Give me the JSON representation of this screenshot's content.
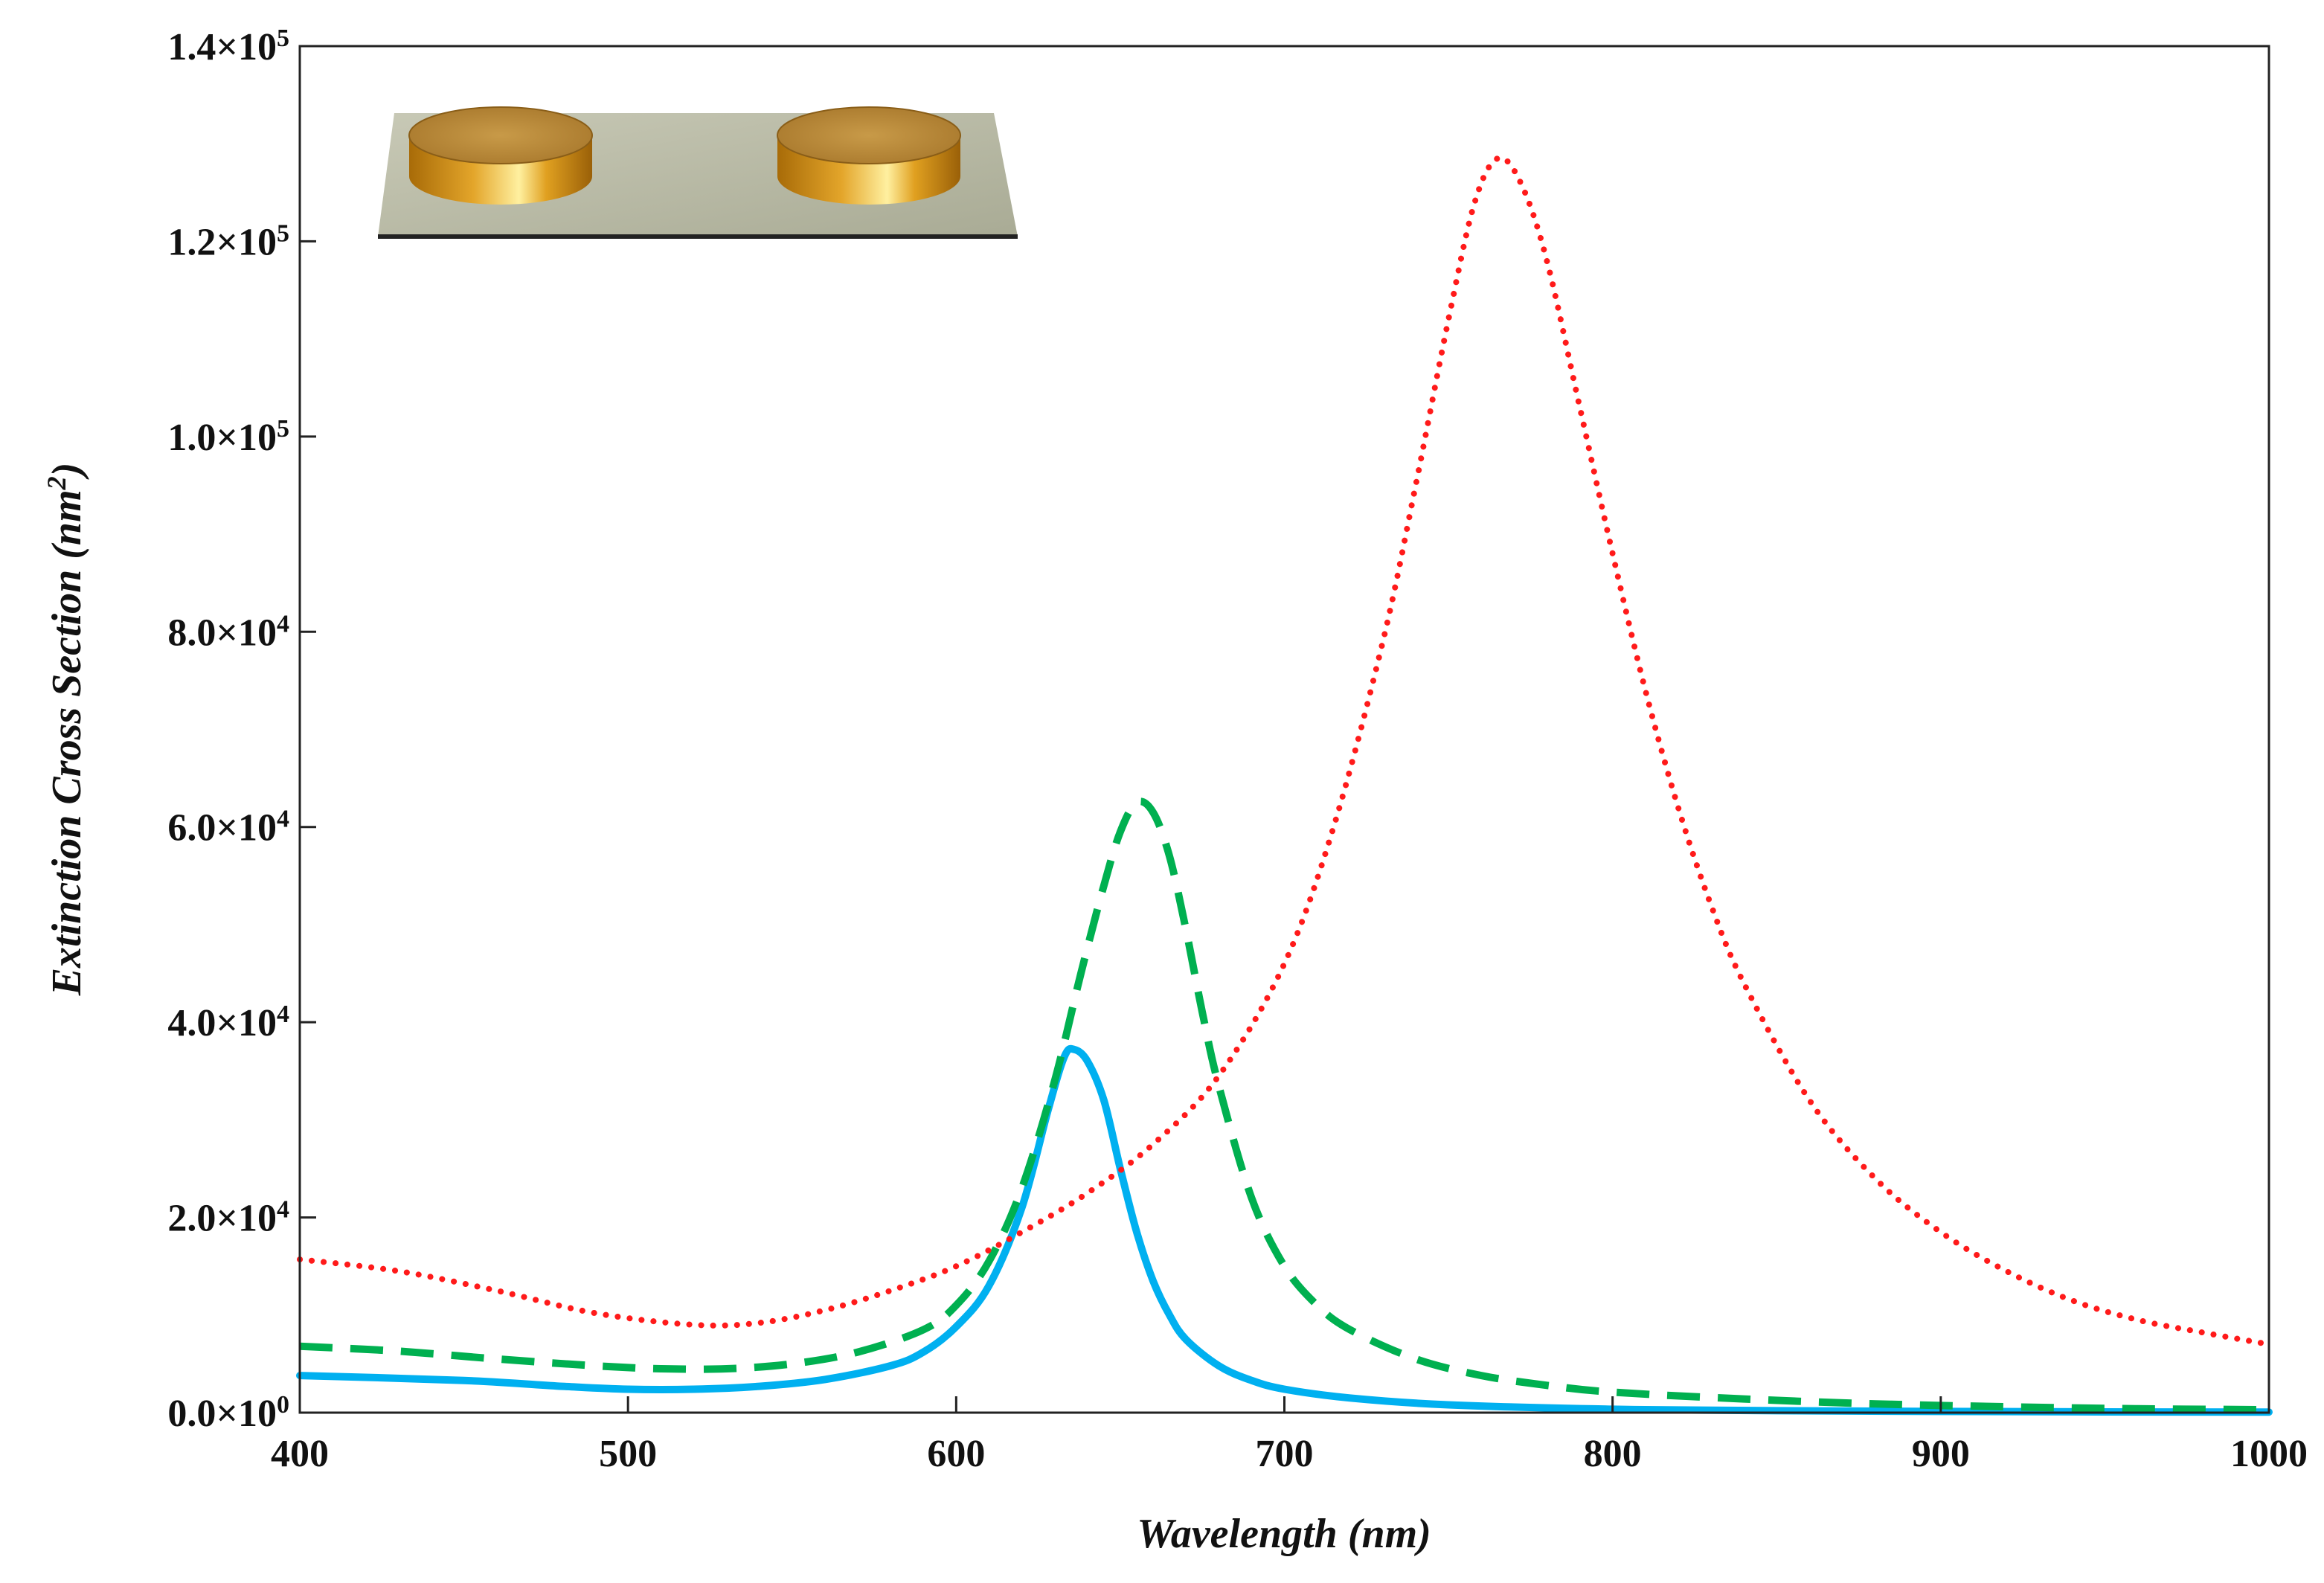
{
  "chart_data": {
    "type": "line",
    "title": "",
    "xlabel": "Wavelength (nm)",
    "ylabel": "Extinction Cross Section (nm²)",
    "ylabel_main": "Extinction Cross Section (nm",
    "ylabel_sup": "2",
    "ylabel_end": ")",
    "xlim": [
      400,
      1000
    ],
    "ylim": [
      0,
      140000
    ],
    "grid": false,
    "legend": "none",
    "x_ticks": [
      {
        "value": 400,
        "label": "400"
      },
      {
        "value": 500,
        "label": "500"
      },
      {
        "value": 600,
        "label": "600"
      },
      {
        "value": 700,
        "label": "700"
      },
      {
        "value": 800,
        "label": "800"
      },
      {
        "value": 900,
        "label": "900"
      },
      {
        "value": 1000,
        "label": "1000"
      }
    ],
    "y_ticks": [
      {
        "value": 0,
        "mantissa": "0.0×10",
        "exp": "0"
      },
      {
        "value": 20000,
        "mantissa": "2.0×10",
        "exp": "4"
      },
      {
        "value": 40000,
        "mantissa": "4.0×10",
        "exp": "4"
      },
      {
        "value": 60000,
        "mantissa": "6.0×10",
        "exp": "4"
      },
      {
        "value": 80000,
        "mantissa": "8.0×10",
        "exp": "4"
      },
      {
        "value": 100000,
        "mantissa": "1.0×10",
        "exp": "5"
      },
      {
        "value": 120000,
        "mantissa": "1.2×10",
        "exp": "5"
      },
      {
        "value": 140000,
        "mantissa": "1.4×10",
        "exp": "5"
      }
    ],
    "series": [
      {
        "name": "solid-blue",
        "style": "solid",
        "color": "#00b0f0",
        "points": [
          [
            400,
            3800
          ],
          [
            450,
            3300
          ],
          [
            480,
            2700
          ],
          [
            500,
            2400
          ],
          [
            520,
            2400
          ],
          [
            540,
            2700
          ],
          [
            560,
            3400
          ],
          [
            580,
            4800
          ],
          [
            590,
            6200
          ],
          [
            600,
            8800
          ],
          [
            610,
            13000
          ],
          [
            620,
            21000
          ],
          [
            628,
            31000
          ],
          [
            633,
            36500
          ],
          [
            636,
            37200
          ],
          [
            640,
            36000
          ],
          [
            645,
            32000
          ],
          [
            650,
            25000
          ],
          [
            655,
            18500
          ],
          [
            660,
            13500
          ],
          [
            665,
            10000
          ],
          [
            670,
            7500
          ],
          [
            680,
            4800
          ],
          [
            690,
            3300
          ],
          [
            700,
            2400
          ],
          [
            720,
            1500
          ],
          [
            750,
            800
          ],
          [
            800,
            350
          ],
          [
            850,
            200
          ],
          [
            900,
            120
          ],
          [
            950,
            80
          ],
          [
            1000,
            60
          ]
        ]
      },
      {
        "name": "dashed-green",
        "style": "dashed",
        "color": "#00b050",
        "points": [
          [
            400,
            6800
          ],
          [
            430,
            6300
          ],
          [
            460,
            5500
          ],
          [
            490,
            4800
          ],
          [
            510,
            4500
          ],
          [
            530,
            4500
          ],
          [
            550,
            5000
          ],
          [
            570,
            6200
          ],
          [
            590,
            8500
          ],
          [
            600,
            11000
          ],
          [
            610,
            15500
          ],
          [
            620,
            23000
          ],
          [
            630,
            34000
          ],
          [
            638,
            45000
          ],
          [
            645,
            54000
          ],
          [
            650,
            59500
          ],
          [
            655,
            62500
          ],
          [
            660,
            61500
          ],
          [
            665,
            57000
          ],
          [
            670,
            49500
          ],
          [
            675,
            41000
          ],
          [
            680,
            33500
          ],
          [
            690,
            22000
          ],
          [
            700,
            15000
          ],
          [
            710,
            11000
          ],
          [
            720,
            8500
          ],
          [
            740,
            5500
          ],
          [
            760,
            3800
          ],
          [
            780,
            2800
          ],
          [
            800,
            2100
          ],
          [
            840,
            1400
          ],
          [
            880,
            900
          ],
          [
            920,
            600
          ],
          [
            960,
            400
          ],
          [
            1000,
            300
          ]
        ]
      },
      {
        "name": "dotted-red",
        "style": "dotted",
        "color": "#ff1a1a",
        "points": [
          [
            400,
            15700
          ],
          [
            430,
            14500
          ],
          [
            460,
            12500
          ],
          [
            490,
            10200
          ],
          [
            520,
            9000
          ],
          [
            540,
            9200
          ],
          [
            560,
            10500
          ],
          [
            580,
            12500
          ],
          [
            600,
            15000
          ],
          [
            620,
            18500
          ],
          [
            640,
            22500
          ],
          [
            660,
            27500
          ],
          [
            680,
            34500
          ],
          [
            700,
            46000
          ],
          [
            715,
            60000
          ],
          [
            730,
            79000
          ],
          [
            740,
            95000
          ],
          [
            750,
            112000
          ],
          [
            758,
            124000
          ],
          [
            765,
            128500
          ],
          [
            772,
            126000
          ],
          [
            780,
            118000
          ],
          [
            790,
            103000
          ],
          [
            800,
            88000
          ],
          [
            810,
            74000
          ],
          [
            820,
            62000
          ],
          [
            830,
            52000
          ],
          [
            840,
            44000
          ],
          [
            860,
            32000
          ],
          [
            880,
            24000
          ],
          [
            900,
            18500
          ],
          [
            920,
            14500
          ],
          [
            940,
            11500
          ],
          [
            960,
            9500
          ],
          [
            980,
            8200
          ],
          [
            1000,
            7000
          ]
        ]
      }
    ]
  }
}
